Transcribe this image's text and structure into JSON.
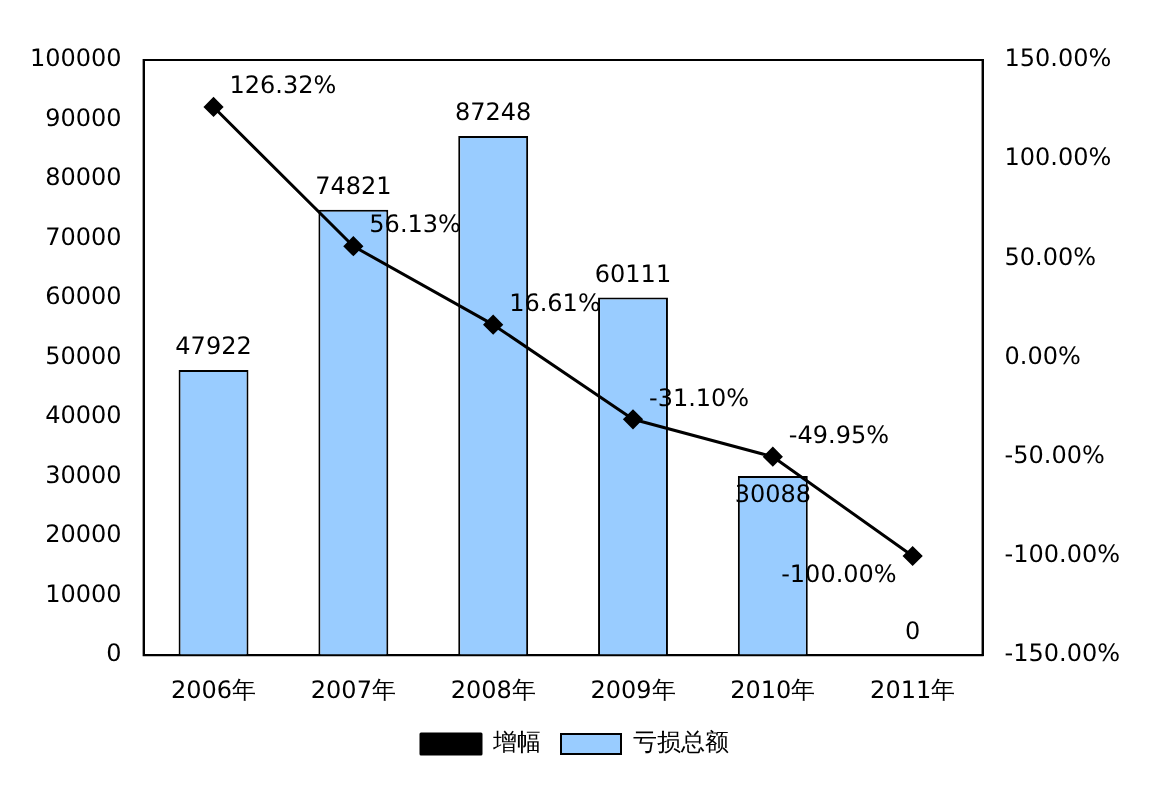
{
  "chart_data": {
    "type": "bar",
    "categories": [
      "2006年",
      "2007年",
      "2008年",
      "2009年",
      "2010年",
      "2011年"
    ],
    "series": [
      {
        "name": "亏损总额",
        "color": "#99ccff",
        "values": [
          47922,
          74821,
          87248,
          60111,
          30088,
          0
        ],
        "value_labels": [
          "47922",
          "74821",
          "87248",
          "60111",
          "30088",
          "0"
        ]
      },
      {
        "name": "增幅",
        "type": "line",
        "axis": "y2",
        "color": "#000000",
        "marker": "diamond",
        "values": [
          126.32,
          56.13,
          16.61,
          -31.1,
          -49.95,
          -100.0
        ],
        "value_labels": [
          "126.32%",
          "56.13%",
          "16.61%",
          "-31.10%",
          "-49.95%",
          "-100.00%"
        ]
      }
    ],
    "ylim": [
      0,
      100000
    ],
    "yticks": [
      0,
      10000,
      20000,
      30000,
      40000,
      50000,
      60000,
      70000,
      80000,
      90000,
      100000
    ],
    "y2lim": [
      -150,
      150
    ],
    "y2ticks": [
      {
        "value": -150,
        "label": "-150.00%"
      },
      {
        "value": -100,
        "label": "-100.00%"
      },
      {
        "value": -50,
        "label": "-50.00%"
      },
      {
        "value": 0,
        "label": "0.00%"
      },
      {
        "value": 50,
        "label": "50.00%"
      },
      {
        "value": 100,
        "label": "100.00%"
      },
      {
        "value": 150,
        "label": "150.00%"
      }
    ],
    "grid": false,
    "legend": "bottom"
  }
}
